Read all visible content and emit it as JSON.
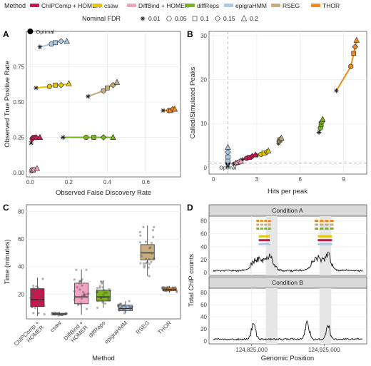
{
  "legend": {
    "method_title": "Method",
    "methods": [
      {
        "name": "ChIPComp + HOMER",
        "color": "#c8174f"
      },
      {
        "name": "csaw",
        "color": "#e8c300"
      },
      {
        "name": "DiffBind + HOMER",
        "color": "#f2a1c0"
      },
      {
        "name": "diffReps",
        "color": "#7ab51d"
      },
      {
        "name": "epigraHMM",
        "color": "#a7c8e6"
      },
      {
        "name": "RSEG",
        "color": "#c9ac7c"
      },
      {
        "name": "THOR",
        "color": "#f08a1c"
      }
    ],
    "fdr_title": "Nominal FDR",
    "fdr_levels": [
      {
        "label": "0.01",
        "shape": "asterisk"
      },
      {
        "label": "0.05",
        "shape": "circle"
      },
      {
        "label": "0.1",
        "shape": "square"
      },
      {
        "label": "0.15",
        "shape": "diamond"
      },
      {
        "label": "0.2",
        "shape": "triangle"
      }
    ]
  },
  "panels": {
    "A": "A",
    "B": "B",
    "C": "C",
    "D": "D"
  },
  "chart_data": [
    {
      "panel": "A",
      "type": "line",
      "xlabel": "Observed False Discovery Rate",
      "ylabel": "Observed True Positive Rate",
      "xlim": [
        -0.02,
        0.78
      ],
      "ylim": [
        -0.03,
        1.0
      ],
      "xticks": [
        "0.0",
        "0.2",
        "0.4",
        "0.6"
      ],
      "yticks": [
        "0.00",
        "0.25",
        "0.50",
        "0.75"
      ],
      "annotation": "Optimal",
      "optimal_point": {
        "x": 0,
        "y": 1
      },
      "series": [
        {
          "name": "epigraHMM",
          "x": [
            0.05,
            0.11,
            0.13,
            0.16,
            0.19
          ],
          "y": [
            0.89,
            0.91,
            0.92,
            0.93,
            0.93
          ]
        },
        {
          "name": "csaw",
          "x": [
            0.03,
            0.1,
            0.13,
            0.16,
            0.2
          ],
          "y": [
            0.6,
            0.61,
            0.62,
            0.62,
            0.63
          ]
        },
        {
          "name": "RSEG",
          "x": [
            0.3,
            0.38,
            0.4,
            0.43,
            0.45
          ],
          "y": [
            0.54,
            0.58,
            0.6,
            0.62,
            0.64
          ]
        },
        {
          "name": "THOR",
          "x": [
            0.69,
            0.72,
            0.73,
            0.74,
            0.75
          ],
          "y": [
            0.44,
            0.44,
            0.44,
            0.45,
            0.45
          ]
        },
        {
          "name": "ChIPComp + HOMER",
          "x": [
            0.005,
            0.01,
            0.02,
            0.03,
            0.05
          ],
          "y": [
            0.21,
            0.24,
            0.25,
            0.25,
            0.25
          ]
        },
        {
          "name": "diffReps",
          "x": [
            0.17,
            0.29,
            0.33,
            0.38,
            0.43
          ],
          "y": [
            0.25,
            0.25,
            0.25,
            0.25,
            0.25
          ]
        },
        {
          "name": "DiffBind + HOMER",
          "x": [
            0.005,
            0.01,
            0.015,
            0.02,
            0.035
          ],
          "y": [
            0.01,
            0.02,
            0.02,
            0.02,
            0.03
          ]
        }
      ]
    },
    {
      "panel": "B",
      "type": "line",
      "xlabel": "Hits per peak",
      "ylabel": "Called/Simulated Peaks",
      "xlim": [
        -0.3,
        10.6
      ],
      "ylim": [
        -1.5,
        31
      ],
      "xticks": [
        "0",
        "3",
        "6",
        "9"
      ],
      "yticks": [
        "0",
        "10",
        "20",
        "30"
      ],
      "annotation": "Optimal",
      "optimal_point": {
        "x": 1,
        "y": 1
      },
      "series": [
        {
          "name": "THOR",
          "x": [
            8.5,
            9.5,
            9.7,
            9.8,
            9.9
          ],
          "y": [
            17.5,
            23,
            26,
            27.5,
            29
          ]
        },
        {
          "name": "diffReps",
          "x": [
            7.3,
            7.4,
            7.45,
            7.5,
            7.55
          ],
          "y": [
            8,
            9,
            9.8,
            10.4,
            11
          ]
        },
        {
          "name": "RSEG",
          "x": [
            4.5,
            4.55,
            4.6,
            4.65,
            4.7
          ],
          "y": [
            5.5,
            6,
            6.3,
            6.5,
            6.7
          ]
        },
        {
          "name": "csaw",
          "x": [
            3.0,
            3.3,
            3.5,
            3.7,
            3.8
          ],
          "y": [
            2.8,
            3.0,
            3.3,
            3.5,
            3.8
          ]
        },
        {
          "name": "ChIPComp + HOMER",
          "x": [
            2.0,
            2.3,
            2.5,
            2.7,
            2.9
          ],
          "y": [
            1.8,
            2.1,
            2.3,
            2.6,
            2.9
          ]
        },
        {
          "name": "DiffBind + HOMER",
          "x": [
            1.4,
            1.6,
            1.7,
            1.8,
            1.9
          ],
          "y": [
            0.8,
            1.0,
            1.2,
            1.3,
            1.4
          ]
        },
        {
          "name": "epigraHMM",
          "x": [
            1.0,
            1.0,
            1.0,
            1.0,
            1.0
          ],
          "y": [
            0.3,
            1.5,
            2.4,
            3.5,
            4.6
          ]
        }
      ]
    },
    {
      "panel": "C",
      "type": "box",
      "xlabel": "Method",
      "ylabel": "Time (minutes)",
      "ylim": [
        2,
        85
      ],
      "yticks": [
        "20",
        "40",
        "60",
        "80"
      ],
      "categories": [
        "ChIPComp + HOMER",
        "csaw",
        "DiffBind + HOMER",
        "diffReps",
        "epigraHMM",
        "RSEG",
        "THOR"
      ],
      "boxes": [
        {
          "name": "ChIPComp + HOMER",
          "q1": 11,
          "median": 16,
          "q3": 24,
          "lo": 4,
          "hi": 32
        },
        {
          "name": "csaw",
          "q1": 5,
          "median": 5.5,
          "q3": 6,
          "lo": 4.5,
          "hi": 7
        },
        {
          "name": "DiffBind + HOMER",
          "q1": 13,
          "median": 18,
          "q3": 28,
          "lo": 5,
          "hi": 38
        },
        {
          "name": "diffReps",
          "q1": 15,
          "median": 18,
          "q3": 23,
          "lo": 10,
          "hi": 30
        },
        {
          "name": "epigraHMM",
          "q1": 8,
          "median": 9.5,
          "q3": 12,
          "lo": 6,
          "hi": 15
        },
        {
          "name": "RSEG",
          "q1": 45,
          "median": 50,
          "q3": 56,
          "lo": 33,
          "hi": 70
        },
        {
          "name": "THOR",
          "q1": 22.5,
          "median": 23.5,
          "q3": 24.5,
          "lo": 21,
          "hi": 26
        }
      ]
    },
    {
      "panel": "D",
      "type": "area",
      "xlabel": "Genomic Position",
      "ylabel": "Total ChIP counts",
      "xticks": [
        "124,825,000",
        "124,925,000"
      ],
      "yticks": [
        "0",
        "20",
        "40",
        "60",
        "80"
      ],
      "ylim": [
        0,
        85
      ],
      "facets": [
        "Condition A",
        "Condition B"
      ]
    }
  ]
}
